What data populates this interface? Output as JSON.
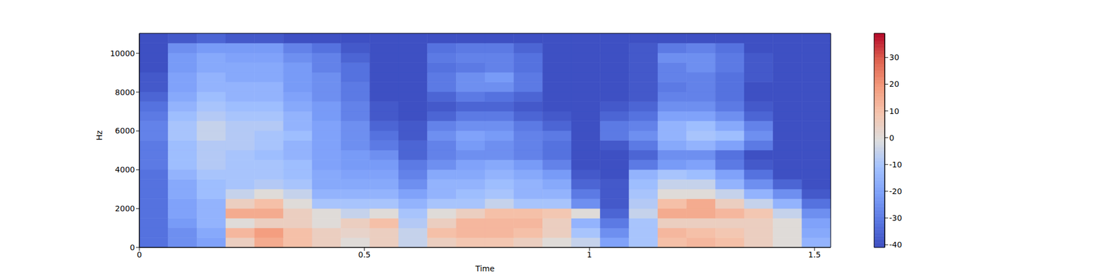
{
  "chart_data": {
    "type": "heatmap",
    "x_label": "Time",
    "y_label": "Hz",
    "xlim": [
      0,
      1.536
    ],
    "ylim": [
      0,
      11025
    ],
    "xticks": [
      0,
      0.5,
      1,
      1.5
    ],
    "yticks": [
      0,
      2000,
      4000,
      6000,
      8000,
      10000
    ],
    "cells": [
      [
        -32,
        -25,
        -20,
        5,
        15,
        10,
        5,
        0,
        5,
        -5,
        5,
        8,
        8,
        5,
        0,
        -5,
        -20,
        -10,
        10,
        12,
        10,
        5,
        0,
        -15
      ],
      [
        -32,
        -25,
        -18,
        12,
        18,
        10,
        5,
        3,
        5,
        -5,
        10,
        12,
        12,
        10,
        5,
        -10,
        -25,
        -10,
        12,
        10,
        8,
        5,
        0,
        -18
      ],
      [
        -32,
        -22,
        -15,
        0,
        5,
        5,
        0,
        5,
        10,
        -8,
        5,
        12,
        12,
        12,
        5,
        -15,
        -30,
        -10,
        5,
        5,
        5,
        5,
        0,
        -20
      ],
      [
        -32,
        -20,
        -15,
        15,
        15,
        5,
        0,
        -5,
        0,
        -10,
        0,
        5,
        10,
        10,
        8,
        0,
        -35,
        -5,
        15,
        15,
        12,
        8,
        -5,
        -25
      ],
      [
        -32,
        -20,
        -15,
        5,
        10,
        0,
        -10,
        -10,
        -10,
        -15,
        -10,
        -10,
        -5,
        -10,
        -10,
        -25,
        -38,
        -8,
        10,
        15,
        5,
        -5,
        -15,
        -32
      ],
      [
        -32,
        -18,
        -12,
        -5,
        0,
        -5,
        -15,
        -15,
        -15,
        -20,
        -15,
        -12,
        -10,
        -15,
        -15,
        -30,
        -38,
        -10,
        0,
        0,
        -5,
        -15,
        -25,
        -38
      ],
      [
        -32,
        -18,
        -12,
        -10,
        -8,
        -10,
        -18,
        -18,
        -18,
        -25,
        -15,
        -15,
        -12,
        -15,
        -18,
        -35,
        -38,
        -12,
        -5,
        -5,
        -15,
        -25,
        -35,
        -40
      ],
      [
        -32,
        -15,
        -10,
        -10,
        -10,
        -12,
        -18,
        -20,
        -20,
        -28,
        -18,
        -18,
        -15,
        -18,
        -22,
        -38,
        -40,
        -15,
        -10,
        -12,
        -20,
        -32,
        -40,
        -40
      ],
      [
        -30,
        -12,
        -8,
        -10,
        -10,
        -12,
        -20,
        -22,
        -22,
        -30,
        -25,
        -20,
        -18,
        -22,
        -28,
        -40,
        -40,
        -30,
        -22,
        -20,
        -30,
        -38,
        -40,
        -40
      ],
      [
        -30,
        -12,
        -8,
        -10,
        -12,
        -15,
        -20,
        -22,
        -25,
        -35,
        -28,
        -25,
        -25,
        -28,
        -32,
        -40,
        -40,
        -35,
        -25,
        -25,
        -32,
        -40,
        -40,
        -40
      ],
      [
        -30,
        -12,
        -8,
        -8,
        -10,
        -15,
        -20,
        -25,
        -30,
        -35,
        -28,
        -22,
        -25,
        -28,
        -32,
        -40,
        -38,
        -30,
        -18,
        -15,
        -20,
        -30,
        -40,
        -40
      ],
      [
        -28,
        -10,
        -5,
        -8,
        -10,
        -12,
        -20,
        -25,
        -32,
        -38,
        -25,
        -20,
        -22,
        -28,
        -30,
        -40,
        -30,
        -25,
        -15,
        -10,
        -12,
        -25,
        -40,
        -40
      ],
      [
        -28,
        -10,
        -5,
        -8,
        -8,
        -15,
        -20,
        -25,
        -35,
        -38,
        -28,
        -25,
        -25,
        -30,
        -35,
        -40,
        -30,
        -28,
        -15,
        -12,
        -18,
        -28,
        -40,
        -40
      ],
      [
        -30,
        -12,
        -8,
        -10,
        -10,
        -15,
        -22,
        -28,
        -38,
        -40,
        -35,
        -30,
        -30,
        -35,
        -38,
        -40,
        -35,
        -32,
        -20,
        -20,
        -25,
        -35,
        -40,
        -40
      ],
      [
        -32,
        -15,
        -10,
        -12,
        -12,
        -18,
        -22,
        -28,
        -38,
        -40,
        -38,
        -35,
        -35,
        -38,
        -40,
        -40,
        -38,
        -35,
        -25,
        -25,
        -30,
        -38,
        -40,
        -40
      ],
      [
        -35,
        -18,
        -12,
        -15,
        -15,
        -20,
        -25,
        -30,
        -40,
        -40,
        -35,
        -30,
        -32,
        -35,
        -40,
        -40,
        -40,
        -38,
        -28,
        -28,
        -32,
        -40,
        -40,
        -40
      ],
      [
        -38,
        -20,
        -15,
        -15,
        -15,
        -22,
        -25,
        -30,
        -40,
        -40,
        -30,
        -25,
        -25,
        -30,
        -40,
        -40,
        -40,
        -38,
        -30,
        -28,
        -32,
        -40,
        -40,
        -40
      ],
      [
        -38,
        -20,
        -15,
        -18,
        -18,
        -22,
        -25,
        -32,
        -40,
        -40,
        -30,
        -25,
        -22,
        -30,
        -40,
        -40,
        -40,
        -38,
        -28,
        -28,
        -32,
        -38,
        -40,
        -40
      ],
      [
        -40,
        -22,
        -18,
        -18,
        -18,
        -22,
        -28,
        -32,
        -40,
        -40,
        -32,
        -30,
        -28,
        -32,
        -40,
        -40,
        -40,
        -38,
        -28,
        -25,
        -30,
        -38,
        -40,
        -40
      ],
      [
        -40,
        -22,
        -18,
        -20,
        -20,
        -25,
        -28,
        -35,
        -40,
        -40,
        -30,
        -28,
        -28,
        -32,
        -40,
        -40,
        -40,
        -38,
        -25,
        -25,
        -30,
        -38,
        -40,
        -40
      ],
      [
        -40,
        -25,
        -22,
        -22,
        -22,
        -28,
        -32,
        -38,
        -40,
        -40,
        -32,
        -30,
        -30,
        -35,
        -40,
        -40,
        -40,
        -38,
        -30,
        -28,
        -32,
        -40,
        -40,
        -40
      ],
      [
        -40,
        -38,
        -35,
        -38,
        -38,
        -40,
        -40,
        -40,
        -40,
        -40,
        -40,
        -40,
        -40,
        -40,
        -40,
        -40,
        -40,
        -40,
        -40,
        -40,
        -40,
        -40,
        -40,
        -40
      ]
    ],
    "colorbar": {
      "range": [
        -41,
        39
      ],
      "ticks": [
        -40,
        -30,
        -20,
        -10,
        0,
        10,
        20,
        30
      ]
    }
  }
}
